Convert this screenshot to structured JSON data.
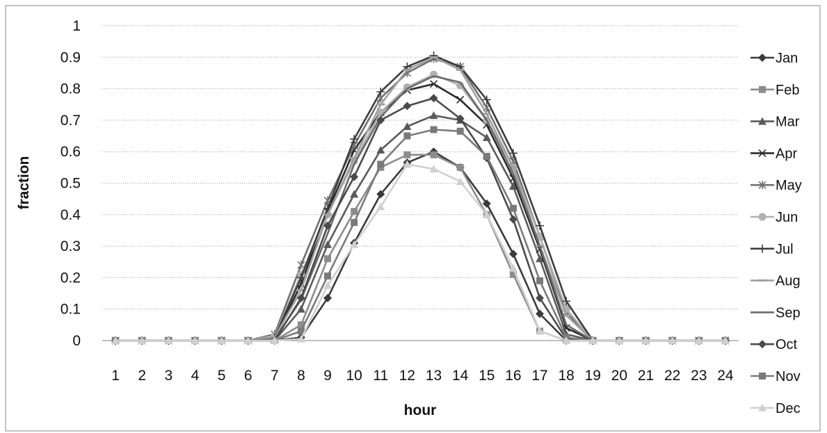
{
  "chart_data": {
    "type": "line",
    "title": "",
    "xlabel": "hour",
    "ylabel": "fraction",
    "ylim": [
      0,
      1
    ],
    "yticks": [
      "0",
      "0.1",
      "0.2",
      "0.3",
      "0.4",
      "0.5",
      "0.6",
      "0.7",
      "0.8",
      "0.9",
      "1"
    ],
    "x": [
      1,
      2,
      3,
      4,
      5,
      6,
      7,
      8,
      9,
      10,
      11,
      12,
      13,
      14,
      15,
      16,
      17,
      18,
      19,
      20,
      21,
      22,
      23,
      24
    ],
    "grid": "horizontal",
    "legend_position": "right",
    "series": [
      {
        "name": "Jan",
        "marker": "diamond",
        "color": "#3a3a3a",
        "values": [
          0,
          0,
          0,
          0,
          0,
          0,
          0,
          0.01,
          0.135,
          0.31,
          0.465,
          0.565,
          0.6,
          0.55,
          0.435,
          0.275,
          0.085,
          0,
          0,
          0,
          0,
          0,
          0,
          0
        ]
      },
      {
        "name": "Feb",
        "marker": "square",
        "color": "#8c8c8c",
        "values": [
          0,
          0,
          0,
          0,
          0,
          0,
          0,
          0.05,
          0.26,
          0.41,
          0.55,
          0.59,
          0.59,
          0.55,
          0.4,
          0.21,
          0.03,
          0,
          0,
          0,
          0,
          0,
          0,
          0
        ]
      },
      {
        "name": "Mar",
        "marker": "triangle",
        "color": "#5a5a5a",
        "values": [
          0,
          0,
          0,
          0,
          0,
          0,
          0,
          0.1,
          0.305,
          0.465,
          0.605,
          0.68,
          0.715,
          0.7,
          0.645,
          0.49,
          0.26,
          0.02,
          0,
          0,
          0,
          0,
          0,
          0
        ]
      },
      {
        "name": "Apr",
        "marker": "x",
        "color": "#2a2a2a",
        "values": [
          0,
          0,
          0,
          0,
          0,
          0,
          0.005,
          0.18,
          0.41,
          0.605,
          0.725,
          0.795,
          0.815,
          0.765,
          0.685,
          0.515,
          0.29,
          0.04,
          0,
          0,
          0,
          0,
          0,
          0
        ]
      },
      {
        "name": "May",
        "marker": "star",
        "color": "#707070",
        "values": [
          0,
          0,
          0,
          0,
          0,
          0,
          0.02,
          0.24,
          0.445,
          0.62,
          0.77,
          0.85,
          0.895,
          0.87,
          0.74,
          0.57,
          0.33,
          0.09,
          0,
          0,
          0,
          0,
          0,
          0
        ]
      },
      {
        "name": "Jun",
        "marker": "circle",
        "color": "#b0b0b0",
        "values": [
          0,
          0,
          0,
          0,
          0,
          0,
          0.015,
          0.21,
          0.4,
          0.57,
          0.725,
          0.805,
          0.845,
          0.81,
          0.7,
          0.55,
          0.33,
          0.1,
          0,
          0,
          0,
          0,
          0,
          0
        ]
      },
      {
        "name": "Jul",
        "marker": "plus",
        "color": "#3c3c3c",
        "values": [
          0,
          0,
          0,
          0,
          0,
          0,
          0.01,
          0.2,
          0.42,
          0.64,
          0.79,
          0.87,
          0.905,
          0.87,
          0.765,
          0.595,
          0.365,
          0.125,
          0,
          0,
          0,
          0,
          0,
          0
        ]
      },
      {
        "name": "Aug",
        "marker": "dash",
        "color": "#a0a0a0",
        "values": [
          0,
          0,
          0,
          0,
          0,
          0,
          0.01,
          0.16,
          0.4,
          0.58,
          0.75,
          0.86,
          0.9,
          0.86,
          0.72,
          0.55,
          0.3,
          0.08,
          0,
          0,
          0,
          0,
          0,
          0
        ]
      },
      {
        "name": "Sep",
        "marker": "none",
        "color": "#6a6a6a",
        "values": [
          0,
          0,
          0,
          0,
          0,
          0,
          0.005,
          0.13,
          0.34,
          0.56,
          0.71,
          0.8,
          0.84,
          0.82,
          0.7,
          0.53,
          0.3,
          0.05,
          0,
          0,
          0,
          0,
          0,
          0
        ]
      },
      {
        "name": "Oct",
        "marker": "diamond",
        "color": "#4a4a4a",
        "values": [
          0,
          0,
          0,
          0,
          0,
          0,
          0,
          0.135,
          0.365,
          0.52,
          0.7,
          0.745,
          0.77,
          0.705,
          0.58,
          0.385,
          0.135,
          0.005,
          0,
          0,
          0,
          0,
          0,
          0
        ]
      },
      {
        "name": "Nov",
        "marker": "square",
        "color": "#7a7a7a",
        "values": [
          0,
          0,
          0,
          0,
          0,
          0,
          0,
          0.03,
          0.205,
          0.375,
          0.56,
          0.65,
          0.67,
          0.665,
          0.585,
          0.42,
          0.19,
          0.01,
          0,
          0,
          0,
          0,
          0,
          0
        ]
      },
      {
        "name": "Dec",
        "marker": "triangle",
        "color": "#d0d0d0",
        "values": [
          0,
          0,
          0,
          0,
          0,
          0,
          0,
          0.005,
          0.175,
          0.305,
          0.425,
          0.56,
          0.545,
          0.505,
          0.4,
          0.23,
          0.03,
          0,
          0,
          0,
          0,
          0,
          0,
          0
        ]
      }
    ]
  }
}
